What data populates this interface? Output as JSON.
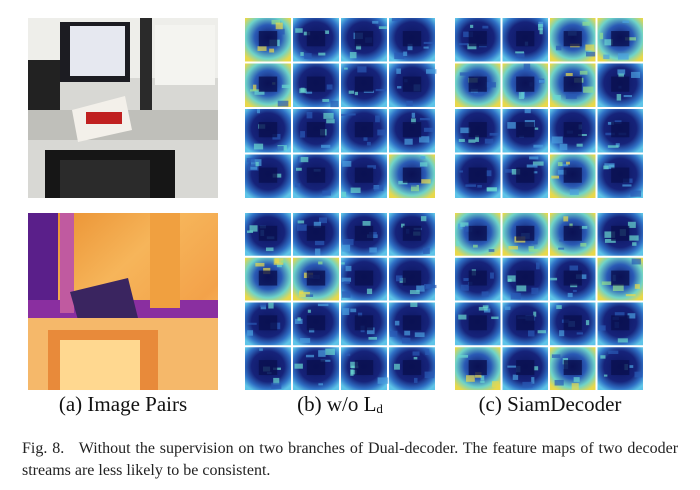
{
  "figure": {
    "panels": [
      {
        "label": "(a) Image Pairs"
      },
      {
        "label": "(b) w/o L",
        "subscript": "d"
      },
      {
        "label": "(c) SiamDecoder"
      }
    ],
    "caption": {
      "label": "Fig. 8.",
      "text": "Without the supervision on two branches of Dual-decoder. The feature maps of two decoder streams are less likely to be consistent."
    }
  }
}
